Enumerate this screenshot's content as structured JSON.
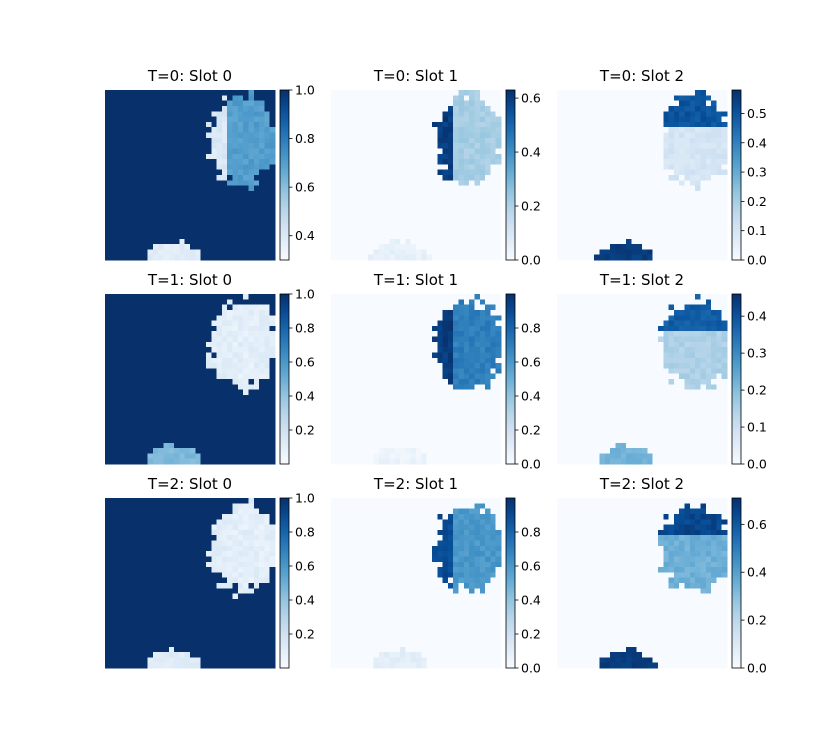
{
  "colors": {
    "cmap_low": "#f7fbff",
    "cmap_high": "#08306b"
  },
  "chart_data": [
    {
      "type": "heatmap",
      "title": "T=0: Slot 0",
      "zlim": [
        0.3,
        1.0
      ],
      "ticks": [
        "0.4",
        "0.6",
        "0.8",
        "1.0"
      ],
      "tick_values": [
        0.4,
        0.6,
        0.8,
        1.0
      ],
      "background": 1.0,
      "blobs": [
        {
          "region": "right-upper",
          "value": 0.7,
          "edge_value": 0.4
        },
        {
          "region": "bottom",
          "value": 0.38
        }
      ]
    },
    {
      "type": "heatmap",
      "title": "T=0: Slot 1",
      "zlim": [
        0.0,
        0.63
      ],
      "ticks": [
        "0.0",
        "0.2",
        "0.4",
        "0.6"
      ],
      "tick_values": [
        0.0,
        0.2,
        0.4,
        0.6
      ],
      "background": 0.0,
      "blobs": [
        {
          "region": "right-upper",
          "value": 0.22,
          "edge_value": 0.6
        },
        {
          "region": "bottom",
          "value": 0.05
        }
      ]
    },
    {
      "type": "heatmap",
      "title": "T=0: Slot 2",
      "zlim": [
        0.0,
        0.58
      ],
      "ticks": [
        "0.0",
        "0.1",
        "0.2",
        "0.3",
        "0.4",
        "0.5"
      ],
      "tick_values": [
        0.0,
        0.1,
        0.2,
        0.3,
        0.4,
        0.5
      ],
      "background": 0.0,
      "blobs": [
        {
          "region": "right-upper",
          "value": 0.1,
          "top_value": 0.5
        },
        {
          "region": "bottom",
          "value": 0.55
        }
      ]
    },
    {
      "type": "heatmap",
      "title": "T=1: Slot 0",
      "zlim": [
        0.0,
        1.0
      ],
      "ticks": [
        "0.2",
        "0.4",
        "0.6",
        "0.8",
        "1.0"
      ],
      "tick_values": [
        0.2,
        0.4,
        0.6,
        0.8,
        1.0
      ],
      "background": 1.0,
      "blobs": [
        {
          "region": "right-upper",
          "value": 0.1
        },
        {
          "region": "bottom",
          "value": 0.45
        }
      ]
    },
    {
      "type": "heatmap",
      "title": "T=1: Slot 1",
      "zlim": [
        0.0,
        1.0
      ],
      "ticks": [
        "0.0",
        "0.2",
        "0.4",
        "0.6",
        "0.8"
      ],
      "tick_values": [
        0.0,
        0.2,
        0.4,
        0.6,
        0.8
      ],
      "background": 0.0,
      "blobs": [
        {
          "region": "right-upper",
          "value": 0.7,
          "edge_value": 0.95
        },
        {
          "region": "bottom",
          "value": 0.06
        }
      ]
    },
    {
      "type": "heatmap",
      "title": "T=1: Slot 2",
      "zlim": [
        0.0,
        0.46
      ],
      "ticks": [
        "0.0",
        "0.1",
        "0.2",
        "0.3",
        "0.4"
      ],
      "tick_values": [
        0.0,
        0.1,
        0.2,
        0.3,
        0.4
      ],
      "background": 0.0,
      "blobs": [
        {
          "region": "right-upper",
          "value": 0.15,
          "top_value": 0.38
        },
        {
          "region": "bottom",
          "value": 0.22
        }
      ]
    },
    {
      "type": "heatmap",
      "title": "T=2: Slot 0",
      "zlim": [
        0.0,
        1.0
      ],
      "ticks": [
        "0.2",
        "0.4",
        "0.6",
        "0.8",
        "1.0"
      ],
      "tick_values": [
        0.2,
        0.4,
        0.6,
        0.8,
        1.0
      ],
      "background": 1.0,
      "blobs": [
        {
          "region": "right-upper",
          "value": 0.1
        },
        {
          "region": "bottom",
          "value": 0.12
        }
      ]
    },
    {
      "type": "heatmap",
      "title": "T=2: Slot 1",
      "zlim": [
        0.0,
        1.0
      ],
      "ticks": [
        "0.0",
        "0.2",
        "0.4",
        "0.6",
        "0.8"
      ],
      "tick_values": [
        0.0,
        0.2,
        0.4,
        0.6,
        0.8
      ],
      "background": 0.0,
      "blobs": [
        {
          "region": "right-upper",
          "value": 0.6,
          "edge_value": 0.9
        },
        {
          "region": "bottom",
          "value": 0.1
        }
      ]
    },
    {
      "type": "heatmap",
      "title": "T=2: Slot 2",
      "zlim": [
        0.0,
        0.71
      ],
      "ticks": [
        "0.0",
        "0.2",
        "0.4",
        "0.6"
      ],
      "tick_values": [
        0.0,
        0.2,
        0.4,
        0.6
      ],
      "background": 0.0,
      "blobs": [
        {
          "region": "right-upper",
          "value": 0.35,
          "top_value": 0.65
        },
        {
          "region": "bottom",
          "value": 0.68
        }
      ]
    }
  ]
}
